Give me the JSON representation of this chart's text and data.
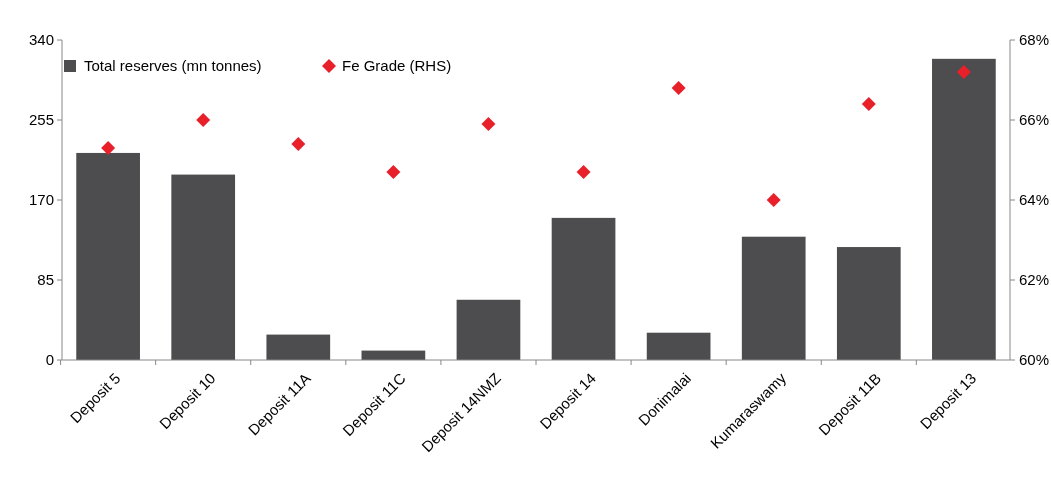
{
  "chart_data": {
    "type": "bar",
    "categories": [
      "Deposit 5",
      "Deposit 10",
      "Deposit 11A",
      "Deposit 11C",
      "Deposit 14NMZ",
      "Deposit 14",
      "Donimalai",
      "Kumaraswamy",
      "Deposit 11B",
      "Deposit 13"
    ],
    "series": [
      {
        "name": "Total reserves (mn tonnes)",
        "color": "#4d4d4f",
        "values": [
          220,
          197,
          27,
          10,
          64,
          151,
          29,
          131,
          120,
          320
        ]
      },
      {
        "name": "Fe Grade (RHS)",
        "type": "scatter",
        "axis": "y2",
        "marker": "diamond",
        "color": "#e8202a",
        "values": [
          65.3,
          66.0,
          65.4,
          64.7,
          65.9,
          64.7,
          66.8,
          64.0,
          66.4,
          67.2
        ]
      }
    ],
    "ylim": [
      0,
      340
    ],
    "yticks": [
      0,
      85,
      170,
      255,
      340
    ],
    "y2lim": [
      60,
      68
    ],
    "y2ticks": [
      {
        "value": 60,
        "label": "60%"
      },
      {
        "value": 62,
        "label": "62%"
      },
      {
        "value": 64,
        "label": "64%"
      },
      {
        "value": 66,
        "label": "66%"
      },
      {
        "value": 68,
        "label": "68%"
      }
    ],
    "legend": "top left",
    "grid": false
  }
}
